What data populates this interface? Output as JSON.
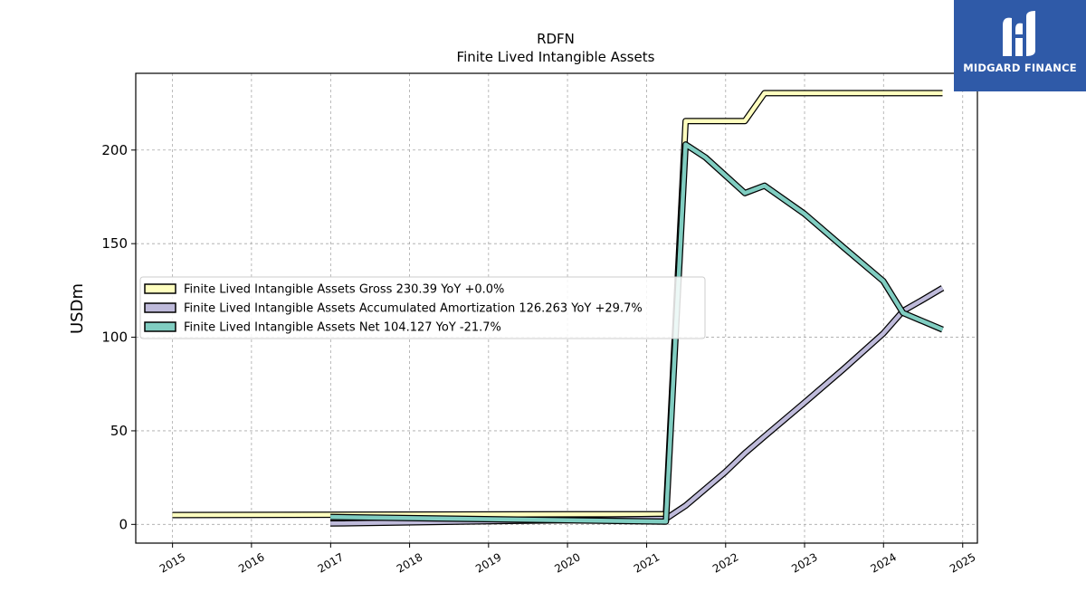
{
  "brand": {
    "name": "MIDGARD FINANCE",
    "background": "#2f5aa8"
  },
  "chart_data": {
    "type": "line",
    "title": "RDFN",
    "subtitle": "Finite Lived Intangible Assets",
    "xlabel": "",
    "ylabel": "USDm",
    "xlim": [
      "2014-07-15",
      "2025-03-10"
    ],
    "ylim": [
      -10,
      241
    ],
    "x_ticks": [
      "2015",
      "2016",
      "2017",
      "2018",
      "2019",
      "2020",
      "2021",
      "2022",
      "2023",
      "2024",
      "2025"
    ],
    "y_ticks": [
      0,
      50,
      100,
      150,
      200
    ],
    "grid": true,
    "legend_position": "center-left",
    "series": [
      {
        "name": "Finite Lived Intangible Assets Gross  230.39 YoY +0.0%",
        "color": "#ffffbf",
        "points": [
          [
            "2014-12-31",
            5
          ],
          [
            "2021-03-31",
            5.5
          ],
          [
            "2021-06-30",
            215.5
          ],
          [
            "2022-03-31",
            215.5
          ],
          [
            "2022-06-30",
            230.4
          ],
          [
            "2024-09-30",
            230.4
          ]
        ]
      },
      {
        "name": "Finite Lived Intangible Assets Accumulated Amortization  126.263 YoY +29.7%",
        "color": "#bebada",
        "points": [
          [
            "2016-12-31",
            0.5
          ],
          [
            "2021-03-31",
            3
          ],
          [
            "2021-06-30",
            10
          ],
          [
            "2021-12-31",
            28
          ],
          [
            "2022-03-31",
            38
          ],
          [
            "2022-06-30",
            47
          ],
          [
            "2022-12-31",
            65
          ],
          [
            "2023-06-30",
            83
          ],
          [
            "2023-12-31",
            102
          ],
          [
            "2024-03-31",
            114
          ],
          [
            "2024-06-30",
            120
          ],
          [
            "2024-09-30",
            126.3
          ]
        ]
      },
      {
        "name": "Finite Lived Intangible Assets Net  104.127 YoY -21.7%",
        "color": "#80cdc1",
        "points": [
          [
            "2016-12-31",
            4
          ],
          [
            "2021-03-31",
            1.5
          ],
          [
            "2021-06-30",
            203
          ],
          [
            "2021-09-30",
            196
          ],
          [
            "2022-03-31",
            177
          ],
          [
            "2022-06-30",
            181
          ],
          [
            "2022-12-31",
            166
          ],
          [
            "2023-06-30",
            148
          ],
          [
            "2023-12-31",
            130
          ],
          [
            "2024-03-31",
            113
          ],
          [
            "2024-09-30",
            104.1
          ]
        ]
      }
    ]
  }
}
